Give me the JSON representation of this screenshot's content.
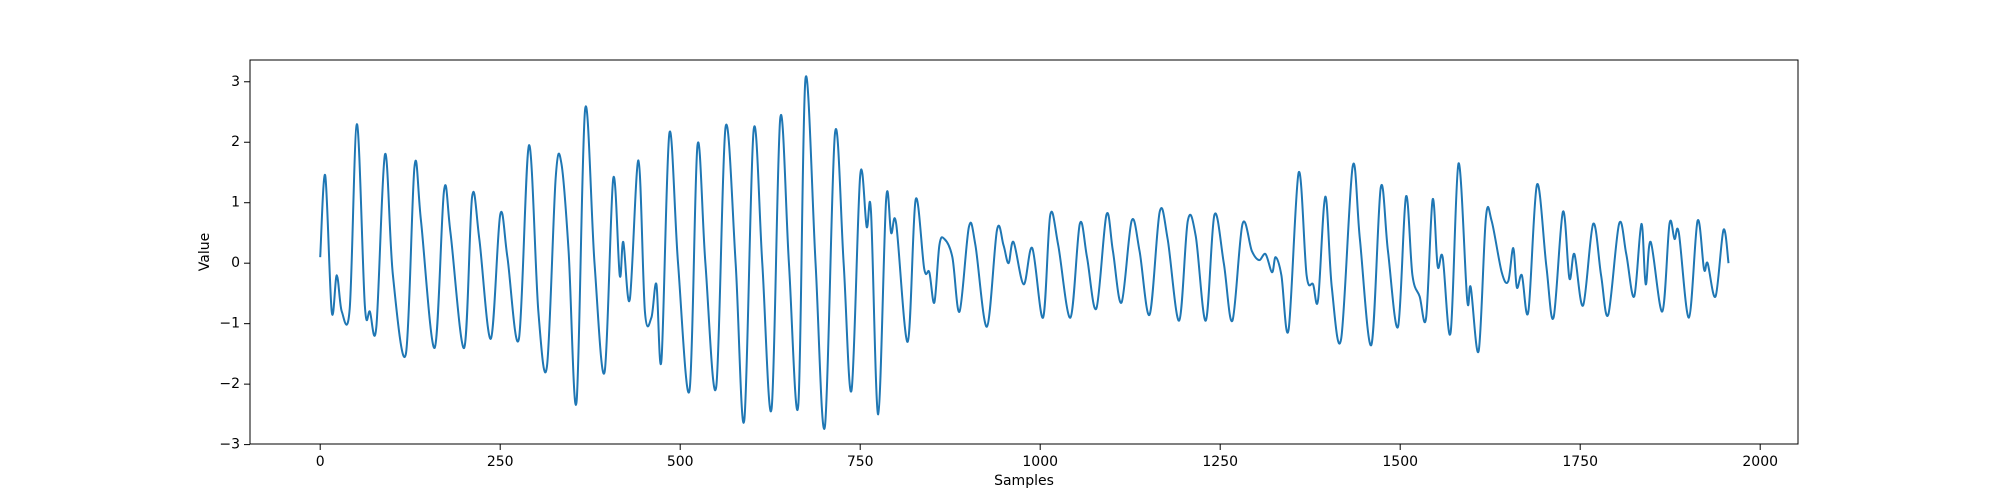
{
  "chart_data": {
    "type": "line",
    "xlabel": "Samples",
    "ylabel": "Value",
    "x": [
      0,
      7,
      16,
      23,
      30,
      41,
      51,
      62,
      69,
      78,
      90,
      101,
      119,
      131,
      140,
      159,
      172,
      181,
      200,
      211,
      221,
      237,
      250,
      260,
      276,
      290,
      303,
      315,
      327,
      335,
      345,
      356,
      368,
      381,
      395,
      407,
      416,
      421,
      430,
      442,
      451,
      460,
      467,
      474,
      485,
      497,
      513,
      524,
      535,
      550,
      563,
      577,
      589,
      602,
      614,
      627,
      639,
      651,
      664,
      674,
      688,
      701,
      715,
      727,
      738,
      750,
      759,
      765,
      775,
      786,
      793,
      800,
      816,
      827,
      839,
      846,
      853,
      860,
      867,
      878,
      888,
      901,
      910,
      926,
      940,
      949,
      956,
      963,
      977,
      989,
      1004,
      1014,
      1025,
      1042,
      1055,
      1065,
      1078,
      1092,
      1101,
      1113,
      1127,
      1138,
      1152,
      1166,
      1177,
      1193,
      1205,
      1216,
      1230,
      1242,
      1255,
      1267,
      1281,
      1294,
      1304,
      1313,
      1322,
      1327,
      1335,
      1345,
      1359,
      1370,
      1379,
      1386,
      1396,
      1405,
      1418,
      1434,
      1444,
      1460,
      1473,
      1483,
      1497,
      1508,
      1517,
      1527,
      1536,
      1545,
      1552,
      1559,
      1570,
      1581,
      1593,
      1598,
      1609,
      1619,
      1627,
      1641,
      1650,
      1657,
      1662,
      1669,
      1678,
      1690,
      1703,
      1713,
      1726,
      1735,
      1742,
      1754,
      1768,
      1779,
      1789,
      1804,
      1814,
      1825,
      1835,
      1841,
      1848,
      1864,
      1874,
      1881,
      1887,
      1901,
      1913,
      1922,
      1927,
      1938,
      1949,
      1956
    ],
    "series": [
      {
        "color": "#1f77b4",
        "values": [
          0.1,
          1.45,
          -0.8,
          -0.2,
          -0.8,
          -0.75,
          2.3,
          -0.7,
          -0.8,
          -1.05,
          1.8,
          -0.2,
          -1.5,
          1.6,
          0.7,
          -1.4,
          1.2,
          0.5,
          -1.4,
          1.1,
          0.4,
          -1.25,
          0.8,
          0.1,
          -1.25,
          1.95,
          -0.8,
          -1.7,
          1.4,
          1.65,
          0.2,
          -2.3,
          2.55,
          0.0,
          -1.8,
          1.4,
          -0.2,
          0.35,
          -0.6,
          1.7,
          -0.8,
          -0.9,
          -0.35,
          -1.6,
          2.15,
          0.0,
          -2.1,
          1.95,
          0.0,
          -2.05,
          2.25,
          0.0,
          -2.6,
          2.2,
          0.0,
          -2.4,
          2.4,
          0.0,
          -2.35,
          3.05,
          0.0,
          -2.7,
          2.15,
          0.0,
          -2.1,
          1.45,
          0.6,
          0.85,
          -2.5,
          1.05,
          0.5,
          0.65,
          -1.3,
          1.05,
          -0.1,
          -0.15,
          -0.65,
          0.3,
          0.4,
          0.1,
          -0.8,
          0.6,
          0.3,
          -1.05,
          0.55,
          0.3,
          0.0,
          0.35,
          -0.35,
          0.25,
          -0.9,
          0.8,
          0.3,
          -0.9,
          0.65,
          0.1,
          -0.75,
          0.8,
          0.2,
          -0.65,
          0.7,
          0.2,
          -0.85,
          0.85,
          0.4,
          -0.95,
          0.7,
          0.45,
          -0.95,
          0.8,
          0.0,
          -0.95,
          0.65,
          0.2,
          0.05,
          0.15,
          -0.15,
          0.1,
          -0.2,
          -1.1,
          1.5,
          -0.2,
          -0.35,
          -0.6,
          1.1,
          -0.4,
          -1.25,
          1.6,
          0.4,
          -1.35,
          1.25,
          0.2,
          -1.05,
          1.1,
          -0.2,
          -0.55,
          -0.9,
          1.05,
          -0.05,
          0.1,
          -1.15,
          1.65,
          -0.6,
          -0.4,
          -1.45,
          0.75,
          0.7,
          -0.15,
          -0.3,
          0.25,
          -0.4,
          -0.2,
          -0.8,
          1.3,
          -0.05,
          -0.9,
          0.85,
          -0.25,
          0.15,
          -0.7,
          0.65,
          -0.2,
          -0.85,
          0.65,
          0.15,
          -0.55,
          0.65,
          -0.35,
          0.35,
          -0.8,
          0.65,
          0.4,
          0.5,
          -0.9,
          0.7,
          -0.1,
          0.0,
          -0.55,
          0.55,
          0.0
        ]
      }
    ],
    "xlim": [
      -97.5,
      2052.5
    ],
    "ylim": [
      -2.99,
      3.36
    ],
    "xticks": [
      0,
      250,
      500,
      750,
      1000,
      1250,
      1500,
      1750,
      2000
    ],
    "yticks": [
      {
        "value": -3,
        "label": "−3"
      },
      {
        "value": -2,
        "label": "−2"
      },
      {
        "value": -1,
        "label": "−1"
      },
      0,
      1,
      2,
      3
    ],
    "grid": false
  }
}
